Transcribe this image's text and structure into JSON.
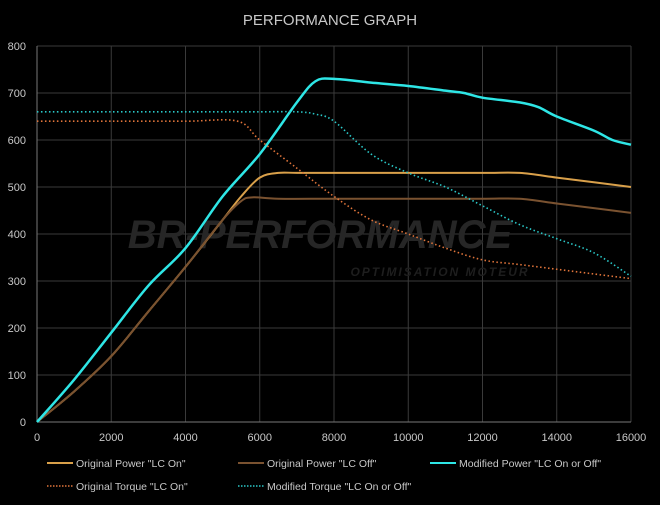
{
  "chart_data": {
    "type": "line",
    "title": "PERFORMANCE GRAPH",
    "xlabel": "",
    "ylabel": "",
    "xlim": [
      0,
      16000
    ],
    "ylim": [
      0,
      800
    ],
    "xticks": [
      0,
      2000,
      4000,
      6000,
      8000,
      10000,
      12000,
      14000,
      16000
    ],
    "yticks": [
      0,
      100,
      200,
      300,
      400,
      500,
      600,
      700,
      800
    ],
    "grid": true,
    "legend_position": "bottom",
    "watermark": {
      "main": "BR-PERFORMANCE",
      "sub": "OPTIMISATION MOTEUR"
    },
    "series": [
      {
        "name": "Original Power \"LC On\"",
        "color": "#d9a04a",
        "style": "solid",
        "x": [
          0,
          1000,
          2000,
          3000,
          4000,
          5000,
          5500,
          6000,
          6500,
          7000,
          8000,
          10000,
          12000,
          13000,
          14000,
          15000,
          16000
        ],
        "y": [
          0,
          65,
          140,
          235,
          330,
          430,
          480,
          520,
          530,
          530,
          530,
          530,
          530,
          530,
          520,
          510,
          500
        ]
      },
      {
        "name": "Original Power \"LC Off\"",
        "color": "#7a5230",
        "style": "solid",
        "x": [
          0,
          1000,
          2000,
          3000,
          4000,
          5000,
          5500,
          5800,
          6500,
          8000,
          10000,
          12000,
          13000,
          14000,
          15000,
          16000
        ],
        "y": [
          0,
          65,
          140,
          235,
          330,
          430,
          470,
          478,
          475,
          475,
          475,
          475,
          475,
          465,
          455,
          445
        ]
      },
      {
        "name": "Modified Power \"LC On or Off\"",
        "color": "#2ee6e6",
        "style": "solid",
        "x": [
          0,
          1000,
          2000,
          3000,
          4000,
          5000,
          6000,
          7000,
          7500,
          8000,
          9000,
          10000,
          11000,
          11500,
          12000,
          13000,
          13500,
          14000,
          15000,
          15500,
          16000
        ],
        "y": [
          0,
          90,
          190,
          290,
          370,
          480,
          570,
          680,
          725,
          730,
          722,
          715,
          705,
          700,
          690,
          680,
          670,
          650,
          620,
          600,
          590
        ]
      },
      {
        "name": "Original Torque \"LC On\"",
        "color": "#e0743a",
        "style": "dotted",
        "x": [
          0,
          2000,
          4000,
          5400,
          6000,
          7000,
          8000,
          9000,
          10000,
          11000,
          12000,
          13000,
          14000,
          15000,
          16000
        ],
        "y": [
          640,
          640,
          640,
          640,
          600,
          540,
          480,
          430,
          400,
          370,
          345,
          335,
          325,
          315,
          305
        ]
      },
      {
        "name": "Modified Torque \"LC On or Off\"",
        "color": "#2ac8c8",
        "style": "dotted",
        "x": [
          0,
          2000,
          4000,
          6000,
          7000,
          7500,
          8000,
          9000,
          10000,
          11000,
          12000,
          13000,
          14000,
          15000,
          16000
        ],
        "y": [
          660,
          660,
          660,
          660,
          660,
          655,
          640,
          570,
          530,
          500,
          460,
          420,
          390,
          360,
          310
        ]
      }
    ]
  }
}
